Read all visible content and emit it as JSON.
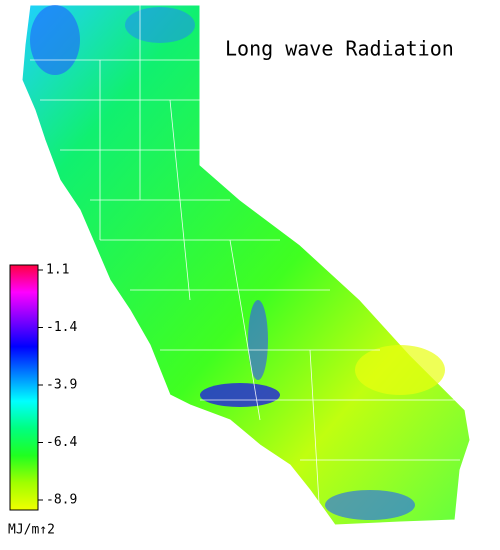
{
  "title": "Long wave Radiation",
  "colorbar": {
    "lim": [
      -8.9,
      1.1
    ],
    "ticks": [
      1.1,
      -1.4,
      -3.9,
      -6.4,
      -8.9
    ],
    "unit": "MJ/m↑2",
    "colors": [
      "#f0ff00",
      "#a0ff00",
      "#20ff20",
      "#00ff80",
      "#00ffff",
      "#0080ff",
      "#0000ff",
      "#8000ff",
      "#ff00ff",
      "#ff0040"
    ]
  }
}
